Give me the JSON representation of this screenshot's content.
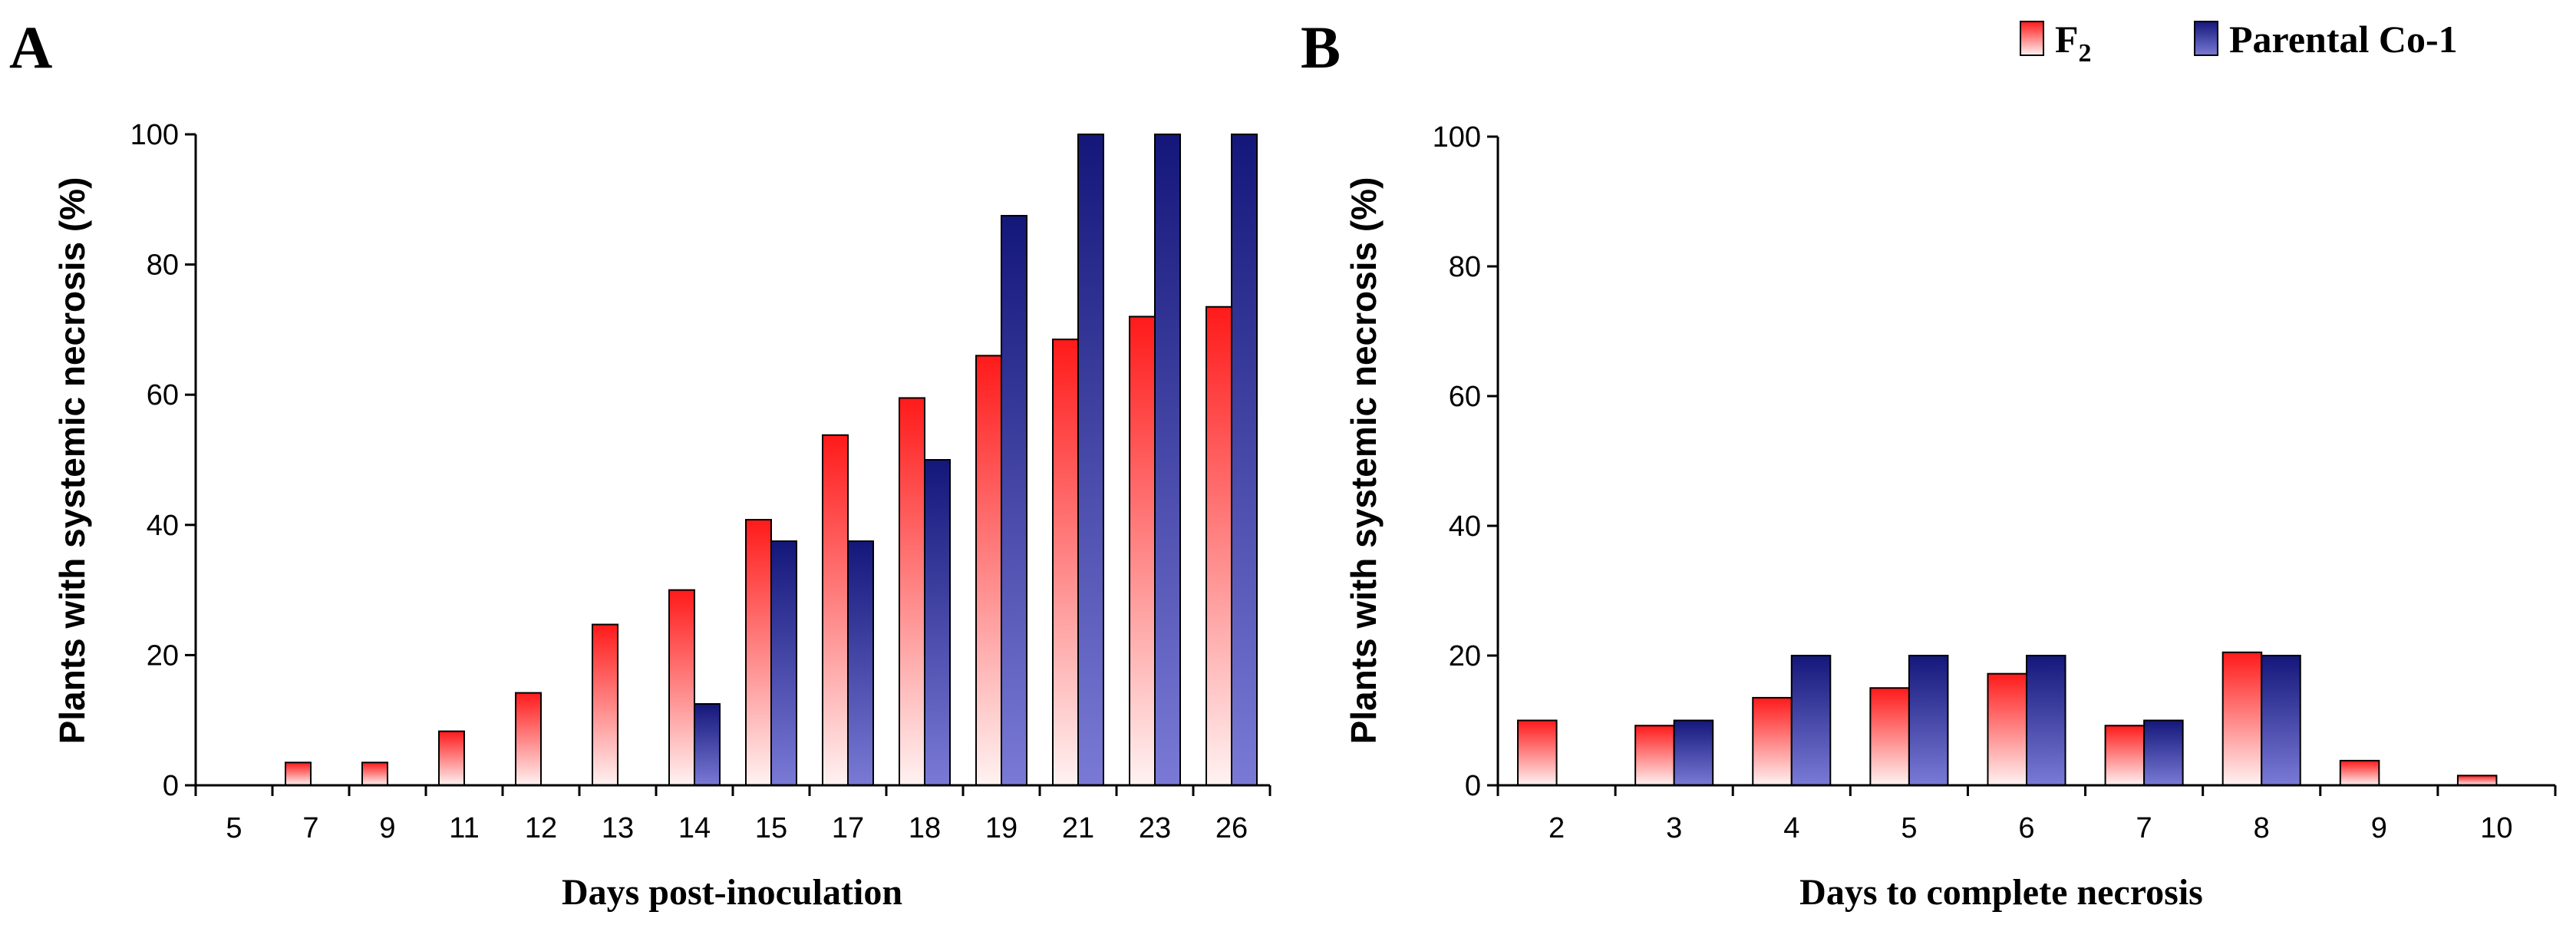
{
  "colors": {
    "f2_top": "#ff1a1a",
    "f2_bottom": "#fff2f2",
    "parental_top": "#14177a",
    "parental_bottom": "#7a7ad6",
    "axis": "#000000"
  },
  "legend": {
    "f2_label": "F",
    "f2_subscript": "2",
    "parental_label": "Parental Co-1"
  },
  "chart_data": [
    {
      "type": "bar",
      "panel_label": "A",
      "title": "",
      "xlabel": "Days post-inoculation",
      "ylabel": "Plants with systemic necrosis (%)",
      "ylim": [
        0,
        100
      ],
      "yticks": [
        "0",
        "20",
        "40",
        "60",
        "80",
        "100"
      ],
      "categories": [
        "5",
        "7",
        "9",
        "11",
        "12",
        "13",
        "14",
        "15",
        "17",
        "18",
        "19",
        "21",
        "23",
        "26"
      ],
      "series": [
        {
          "name": "F2",
          "values": [
            0,
            3.5,
            3.5,
            8.3,
            14.2,
            24.7,
            30.0,
            40.8,
            53.8,
            59.5,
            66.0,
            68.5,
            72.0,
            73.5
          ]
        },
        {
          "name": "Parental Co-1",
          "values": [
            0,
            0,
            0,
            0,
            0,
            0,
            12.5,
            37.5,
            37.5,
            50.0,
            87.5,
            100,
            100,
            100
          ]
        }
      ]
    },
    {
      "type": "bar",
      "panel_label": "B",
      "title": "",
      "xlabel": "Days to complete necrosis",
      "ylabel": "Plants with systemic necrosis (%)",
      "ylim": [
        0,
        100
      ],
      "yticks": [
        "0",
        "20",
        "40",
        "60",
        "80",
        "100"
      ],
      "categories": [
        "2",
        "3",
        "4",
        "5",
        "6",
        "7",
        "8",
        "9",
        "10"
      ],
      "series": [
        {
          "name": "F2",
          "values": [
            10.0,
            9.2,
            13.5,
            15.0,
            17.2,
            9.2,
            20.5,
            3.8,
            1.5
          ]
        },
        {
          "name": "Parental Co-1",
          "values": [
            0,
            10.0,
            20.0,
            20.0,
            20.0,
            10.0,
            20.0,
            0,
            0
          ]
        }
      ]
    }
  ]
}
